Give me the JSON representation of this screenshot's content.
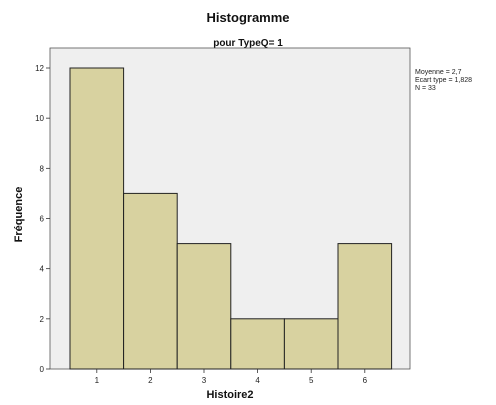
{
  "chart_data": {
    "type": "bar",
    "title": "Histogramme",
    "subtitle": "pour TypeQ= 1",
    "xlabel": "Histoire2",
    "ylabel": "Fréquence",
    "categories": [
      "1",
      "2",
      "3",
      "4",
      "5",
      "6"
    ],
    "values": [
      12,
      7,
      5,
      2,
      2,
      5
    ],
    "yticks": [
      "0",
      "2",
      "4",
      "6",
      "8",
      "10",
      "12"
    ],
    "ylim": [
      0,
      12
    ],
    "grid": false,
    "stats": [
      "Moyenne = 2,7",
      "Ecart type = 1,828",
      "N = 33"
    ],
    "colors": {
      "bar_fill": "#d8d2a0",
      "bar_stroke": "#222222",
      "plot_bg": "#efefef"
    }
  }
}
